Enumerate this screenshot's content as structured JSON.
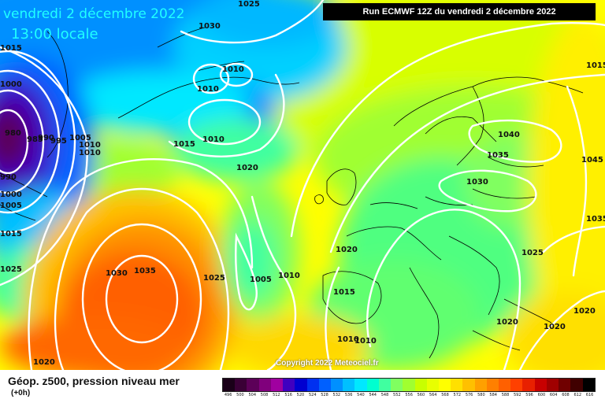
{
  "header": {
    "date_line": "vendredi 2 décembre 2022",
    "time_line": "13:00 locale",
    "run_info": "Run ECMWF 12Z du vendredi 2 décembre 2022"
  },
  "copyright": "Copyright 2022 Meteociel.fr",
  "legend": {
    "title": "Géop. z500, pression niveau mer",
    "subtitle": "(+0h)",
    "scale_values": [
      "496",
      "500",
      "504",
      "508",
      "512",
      "516",
      "520",
      "524",
      "528",
      "532",
      "536",
      "540",
      "544",
      "548",
      "552",
      "556",
      "560",
      "564",
      "568",
      "572",
      "576",
      "580",
      "584",
      "588",
      "592",
      "596",
      "600",
      "604",
      "608",
      "612",
      "616"
    ],
    "scale_colors": [
      "#1a0018",
      "#3a0036",
      "#5c0058",
      "#80007c",
      "#a000a0",
      "#4000c0",
      "#0000d0",
      "#0030f0",
      "#0060ff",
      "#0090ff",
      "#00c0ff",
      "#00e8ff",
      "#00ffd0",
      "#40ffa0",
      "#80ff60",
      "#a0ff30",
      "#c8ff00",
      "#e8ff00",
      "#ffff00",
      "#ffe000",
      "#ffc000",
      "#ffa000",
      "#ff8000",
      "#ff6000",
      "#ff4000",
      "#e82000",
      "#c80000",
      "#a00000",
      "#700000",
      "#400000",
      "#000000"
    ]
  },
  "isobar_labels": [
    "1025",
    "1030",
    "1010",
    "1010",
    "1010",
    "1015",
    "1020",
    "1040",
    "1035",
    "1030",
    "1045",
    "1035",
    "1025",
    "1020",
    "1015",
    "1010",
    "1010",
    "1005",
    "1010",
    "1025",
    "1030",
    "1035",
    "1020",
    "1020",
    "1020",
    "1020",
    "1015",
    "1000",
    "980",
    "985",
    "990",
    "995",
    "1005",
    "1010",
    "1010",
    "990",
    "1000",
    "1005",
    "1015",
    "1025",
    "1015"
  ],
  "colors": {
    "accent_title": "#20ffff",
    "contour": "#ffffff"
  }
}
